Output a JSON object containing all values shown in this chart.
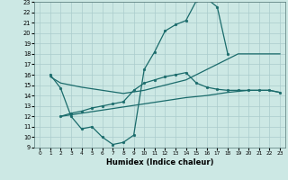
{
  "title": "",
  "xlabel": "Humidex (Indice chaleur)",
  "ylabel": "",
  "xlim": [
    -0.5,
    23.5
  ],
  "ylim": [
    9,
    23
  ],
  "xticks": [
    0,
    1,
    2,
    3,
    4,
    5,
    6,
    7,
    8,
    9,
    10,
    11,
    12,
    13,
    14,
    15,
    16,
    17,
    18,
    19,
    20,
    21,
    22,
    23
  ],
  "yticks": [
    9,
    10,
    11,
    12,
    13,
    14,
    15,
    16,
    17,
    18,
    19,
    20,
    21,
    22,
    23
  ],
  "background_color": "#cce8e4",
  "grid_color": "#aacccc",
  "line_color": "#1a6b6b",
  "line_width": 0.9,
  "marker_size": 2.0,
  "lines": [
    {
      "x": [
        1,
        2,
        3,
        4,
        5,
        6,
        7,
        8,
        9,
        10,
        11,
        12,
        13,
        14,
        15,
        16,
        17,
        18
      ],
      "y": [
        16.0,
        14.7,
        12.0,
        10.8,
        11.0,
        10.0,
        9.3,
        9.5,
        10.2,
        16.5,
        18.2,
        20.2,
        20.8,
        21.2,
        23.1,
        23.3,
        22.5,
        18.0
      ],
      "has_markers": true
    },
    {
      "x": [
        1,
        2,
        4,
        6,
        8,
        10,
        12,
        14,
        16,
        17,
        18,
        19,
        20,
        21,
        22,
        23
      ],
      "y": [
        15.8,
        15.2,
        14.8,
        14.5,
        14.2,
        14.5,
        15.0,
        15.5,
        16.5,
        17.0,
        17.5,
        18.0,
        18.0,
        18.0,
        18.0,
        18.0
      ],
      "has_markers": false
    },
    {
      "x": [
        2,
        3,
        4,
        5,
        6,
        7,
        8,
        9,
        10,
        11,
        12,
        13,
        14,
        15,
        16,
        17,
        18,
        19,
        20,
        21,
        22,
        23
      ],
      "y": [
        12.0,
        12.3,
        12.5,
        12.8,
        13.0,
        13.2,
        13.4,
        14.5,
        15.2,
        15.5,
        15.8,
        16.0,
        16.2,
        15.2,
        14.8,
        14.6,
        14.5,
        14.5,
        14.5,
        14.5,
        14.5,
        14.3
      ],
      "has_markers": true
    },
    {
      "x": [
        2,
        4,
        6,
        8,
        10,
        12,
        14,
        16,
        18,
        20,
        22,
        23
      ],
      "y": [
        12.0,
        12.3,
        12.6,
        12.9,
        13.2,
        13.5,
        13.8,
        14.0,
        14.3,
        14.5,
        14.5,
        14.3
      ],
      "has_markers": false
    }
  ]
}
